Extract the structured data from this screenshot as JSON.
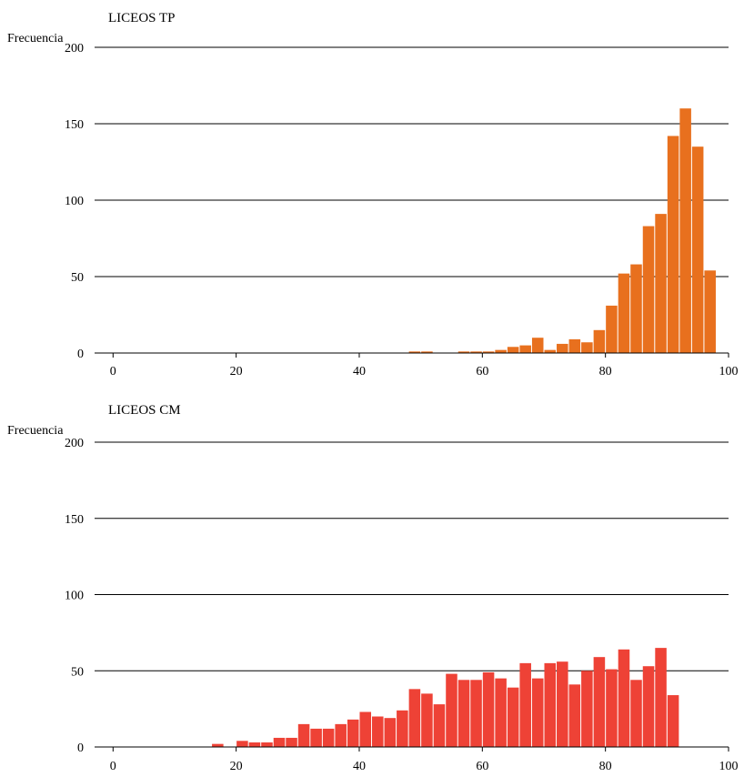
{
  "chart_data": [
    {
      "type": "bar",
      "title": "LICEOS TP",
      "ylabel": "Frecuencia",
      "xlabel": "",
      "color": "#e8701e",
      "xlim": [
        -3,
        100
      ],
      "ylim": [
        0,
        200
      ],
      "xticks": [
        0,
        20,
        40,
        60,
        80,
        100
      ],
      "yticks": [
        0,
        50,
        100,
        150,
        200
      ],
      "bin_width": 2,
      "bin_starts": [
        46,
        48,
        50,
        52,
        54,
        56,
        58,
        60,
        62,
        64,
        66,
        68,
        70,
        72,
        74,
        76,
        78,
        80,
        82,
        84,
        86,
        88,
        90,
        92,
        94,
        96,
        98
      ],
      "values": [
        0,
        1,
        1,
        0,
        0,
        1,
        1,
        1,
        2,
        4,
        5,
        10,
        2,
        6,
        9,
        7,
        15,
        31,
        52,
        58,
        83,
        91,
        142,
        160,
        135,
        54,
        0
      ],
      "grid": "horizontal"
    },
    {
      "type": "bar",
      "title": "LICEOS CM",
      "ylabel": "Frecuencia",
      "xlabel": "",
      "color": "#ee4236",
      "xlim": [
        -3,
        100
      ],
      "ylim": [
        0,
        200
      ],
      "xticks": [
        0,
        20,
        40,
        60,
        80,
        100
      ],
      "yticks": [
        0,
        50,
        100,
        150,
        200
      ],
      "bin_width": 2,
      "bin_starts": [
        10,
        12,
        14,
        16,
        18,
        20,
        22,
        24,
        26,
        28,
        30,
        32,
        34,
        36,
        38,
        40,
        42,
        44,
        46,
        48,
        50,
        52,
        54,
        56,
        58,
        60,
        62,
        64,
        66,
        68,
        70,
        72,
        74,
        76,
        78,
        80,
        82,
        84,
        86,
        88,
        90,
        92,
        94,
        96,
        98
      ],
      "values": [
        0,
        0,
        0,
        2,
        0,
        4,
        3,
        3,
        6,
        6,
        15,
        12,
        12,
        15,
        18,
        23,
        20,
        19,
        24,
        38,
        35,
        28,
        48,
        44,
        44,
        49,
        45,
        39,
        55,
        45,
        55,
        56,
        41,
        50,
        59,
        51,
        64,
        44,
        53,
        65,
        34,
        0,
        0,
        0,
        0
      ],
      "grid": "horizontal"
    }
  ]
}
